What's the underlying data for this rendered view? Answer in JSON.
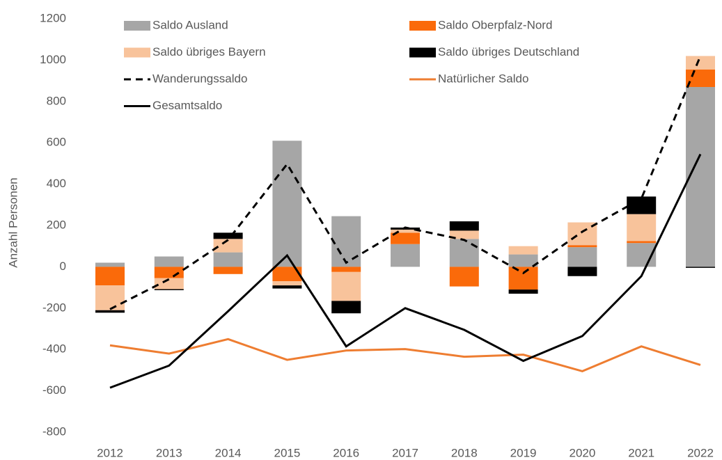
{
  "chart_data": {
    "type": "bar",
    "y_label": "Anzahl Personen",
    "categories": [
      "2012",
      "2013",
      "2014",
      "2015",
      "2016",
      "2017",
      "2018",
      "2019",
      "2020",
      "2021",
      "2022"
    ],
    "stacked": true,
    "series": [
      {
        "name": "Saldo Ausland",
        "color": "#a6a6a6",
        "values": [
          20,
          50,
          70,
          610,
          245,
          110,
          135,
          60,
          95,
          115,
          870
        ]
      },
      {
        "name": "Saldo Oberpfalz-Nord",
        "color": "#fa6a0a",
        "values": [
          -90,
          -55,
          -35,
          -70,
          -25,
          55,
          -95,
          -110,
          10,
          10,
          85
        ]
      },
      {
        "name": "Saldo übriges Bayern",
        "color": "#f8c39b",
        "values": [
          -120,
          -53,
          65,
          -20,
          -140,
          15,
          40,
          40,
          110,
          130,
          65
        ]
      },
      {
        "name": "Saldo übriges Deutschland",
        "color": "#000000",
        "values": [
          -12,
          -5,
          30,
          -15,
          -60,
          10,
          45,
          -20,
          -45,
          85,
          -5
        ]
      }
    ],
    "lines": [
      {
        "name": "Wanderungssaldo",
        "color": "#000000",
        "dashed": true,
        "values": [
          -205,
          -60,
          130,
          497,
          20,
          190,
          130,
          -30,
          170,
          330,
          1020
        ]
      },
      {
        "name": "Natürlicher Saldo",
        "color": "#ee7d31",
        "dashed": false,
        "values": [
          -380,
          -420,
          -350,
          -450,
          -405,
          -398,
          -435,
          -425,
          -505,
          -385,
          -475
        ]
      },
      {
        "name": "Gesamtsaldo",
        "color": "#000000",
        "dashed": false,
        "values": [
          -585,
          -478,
          -215,
          55,
          -385,
          -200,
          -305,
          -455,
          -335,
          -45,
          545
        ]
      }
    ],
    "ylim": [
      -800,
      1200
    ],
    "yticks": [
      -800,
      -600,
      -400,
      -200,
      0,
      200,
      400,
      600,
      800,
      1000,
      1200
    ],
    "grid": false
  }
}
